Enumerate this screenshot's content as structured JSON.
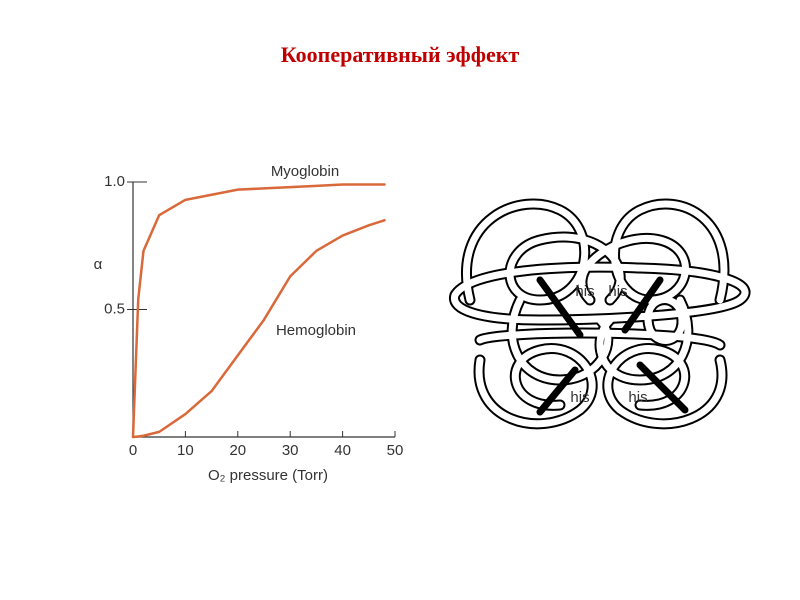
{
  "chart_data": {
    "type": "line",
    "title": "Кооперативный эффект",
    "x_label": "O₂ pressure (Torr)",
    "y_label": "α",
    "x": [
      0,
      1,
      2,
      5,
      10,
      15,
      20,
      25,
      30,
      35,
      40,
      45,
      48
    ],
    "series": [
      {
        "name": "Myoglobin",
        "color": "#d9693a",
        "values": [
          0,
          0.54,
          0.73,
          0.87,
          0.93,
          0.95,
          0.97,
          0.975,
          0.98,
          0.985,
          0.99,
          0.99,
          0.99
        ]
      },
      {
        "name": "Hemoglobin",
        "color": "#d9693a",
        "values": [
          0,
          0.002,
          0.005,
          0.02,
          0.09,
          0.18,
          0.32,
          0.46,
          0.63,
          0.73,
          0.79,
          0.83,
          0.85
        ]
      }
    ],
    "xlim": [
      0,
      50
    ],
    "xticks": [
      0,
      10,
      20,
      30,
      40,
      50
    ],
    "ylim": [
      0,
      1
    ],
    "yticks": [
      0.5,
      {
        "value": 1,
        "label": "1.0"
      }
    ],
    "grid": false
  },
  "diagram": {
    "labels": [
      "his",
      "his",
      "his",
      "his"
    ]
  }
}
